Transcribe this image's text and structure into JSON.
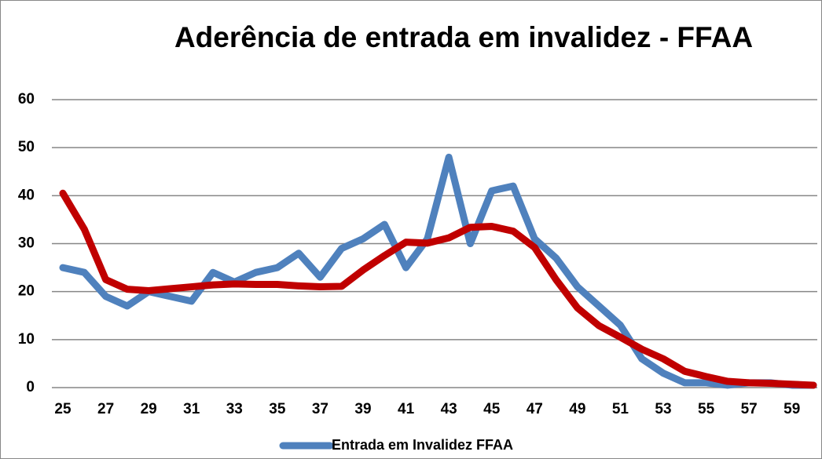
{
  "chart_data": {
    "type": "line",
    "title": "Aderência de entrada em invalidez - FFAA",
    "x": [
      25,
      26,
      27,
      28,
      29,
      30,
      31,
      32,
      33,
      34,
      35,
      36,
      37,
      38,
      39,
      40,
      41,
      42,
      43,
      44,
      45,
      46,
      47,
      48,
      49,
      50,
      51,
      52,
      53,
      54,
      55,
      56,
      57,
      58,
      59,
      60
    ],
    "series": [
      {
        "name": "Entrada em Invalidez FFAA",
        "color": "#4f81bd",
        "values": [
          25,
          24,
          19,
          17,
          20,
          19,
          18,
          24,
          22,
          24,
          25,
          28,
          23,
          29,
          31,
          34,
          25,
          31,
          48,
          30,
          41,
          42,
          31,
          27,
          21,
          17,
          13,
          6,
          3,
          1,
          1,
          0.5,
          1,
          1,
          0.5,
          0.5
        ]
      },
      {
        "color": "#c00000",
        "values": [
          40.5,
          33,
          22.5,
          20.5,
          20.2,
          20.6,
          21,
          21.4,
          21.6,
          21.5,
          21.5,
          21.2,
          21,
          21.1,
          24.5,
          27.5,
          30.3,
          30.1,
          31.2,
          33.4,
          33.6,
          32.6,
          29.2,
          22.5,
          16.6,
          12.9,
          10.5,
          8,
          6,
          3.4,
          2.3,
          1.3,
          1,
          0.9,
          0.7,
          0.5
        ]
      }
    ],
    "xlim": [
      25,
      60
    ],
    "xticks": [
      25,
      27,
      29,
      31,
      33,
      35,
      37,
      39,
      41,
      43,
      45,
      47,
      49,
      51,
      53,
      55,
      57,
      59
    ],
    "ylim": [
      0,
      60
    ],
    "yticks": [
      0,
      10,
      20,
      30,
      40,
      50,
      60
    ],
    "grid": true
  }
}
